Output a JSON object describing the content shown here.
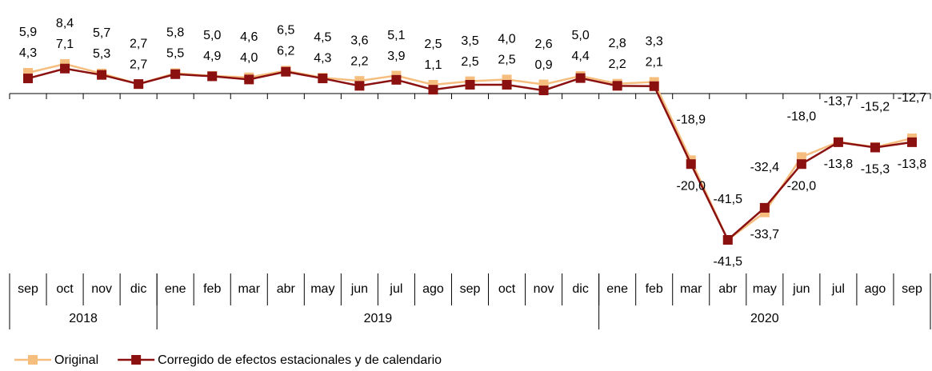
{
  "chart_data": {
    "type": "line",
    "groups": [
      {
        "label": "2018",
        "categories": [
          "sep",
          "oct",
          "nov",
          "dic"
        ]
      },
      {
        "label": "2019",
        "categories": [
          "ene",
          "feb",
          "mar",
          "abr",
          "may",
          "jun",
          "jul",
          "ago",
          "sep",
          "oct",
          "nov",
          "dic"
        ]
      },
      {
        "label": "2020",
        "categories": [
          "ene",
          "feb",
          "mar",
          "abr",
          "may",
          "jun",
          "jul",
          "ago",
          "sep"
        ]
      }
    ],
    "series": [
      {
        "name": "Original",
        "color": "#f5be7e",
        "values": [
          5.9,
          8.4,
          5.7,
          2.7,
          5.8,
          5.0,
          4.6,
          6.5,
          4.5,
          3.6,
          5.1,
          2.5,
          3.5,
          4.0,
          2.6,
          5.0,
          2.8,
          3.3,
          -18.9,
          -41.5,
          -33.7,
          -18.0,
          -13.7,
          -15.2,
          -12.7
        ],
        "value_labels": [
          "5,9",
          "8,4",
          "5,7",
          "2,7",
          "5,8",
          "5,0",
          "4,6",
          "6,5",
          "4,5",
          "3,6",
          "5,1",
          "2,5",
          "3,5",
          "4,0",
          "2,6",
          "5,0",
          "2,8",
          "3,3",
          "-18,9",
          "-41,5",
          "-33,7",
          "-18,0",
          "-13,7",
          "-15,2",
          "-12,7"
        ]
      },
      {
        "name": "Corregido de efectos estacionales y de calendario",
        "color": "#8b1010",
        "values": [
          4.3,
          7.1,
          5.3,
          2.7,
          5.5,
          4.9,
          4.0,
          6.2,
          4.3,
          2.2,
          3.9,
          1.1,
          2.5,
          2.5,
          0.9,
          4.4,
          2.2,
          2.1,
          -20.0,
          -41.5,
          -32.4,
          -20.0,
          -13.8,
          -15.3,
          -13.8
        ],
        "value_labels": [
          "4,3",
          "7,1",
          "5,3",
          "2,7",
          "5,5",
          "4,9",
          "4,0",
          "6,2",
          "4,3",
          "2,2",
          "3,9",
          "1,1",
          "2,5",
          "2,5",
          "0,9",
          "4,4",
          "2,2",
          "2,1",
          "-20,0",
          "-41,5",
          "-32,4",
          "-20,0",
          "-13,8",
          "-15,3",
          "-13,8"
        ]
      }
    ]
  }
}
